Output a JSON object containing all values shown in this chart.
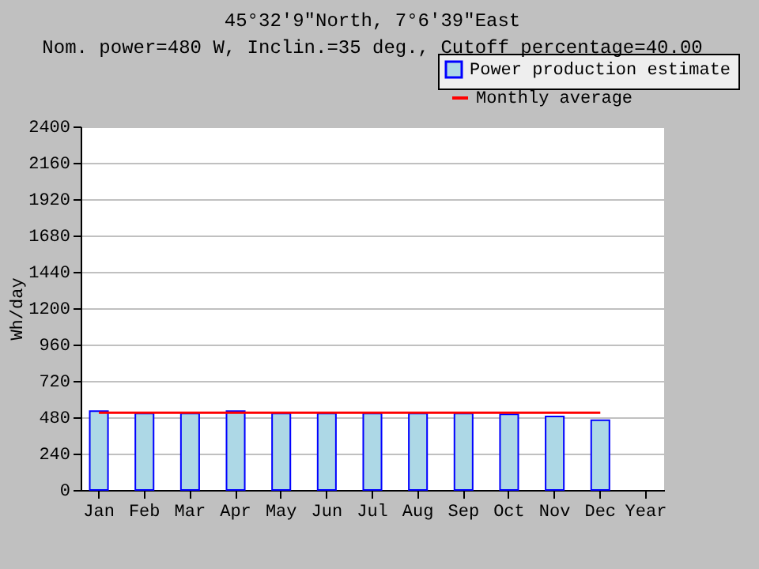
{
  "chart_data": {
    "type": "bar",
    "title": "45°32′9\"North, 7°6′39\"East",
    "subtitle": "Nom. power=480 W, Inclin.=35 deg., Cutoff percentage=40.00",
    "ylabel": "Wh/day",
    "categories": [
      "Jan",
      "Feb",
      "Mar",
      "Apr",
      "May",
      "Jun",
      "Jul",
      "Aug",
      "Sep",
      "Oct",
      "Nov",
      "Dec",
      "Year"
    ],
    "series": [
      {
        "name": "Power production estimate",
        "color": "#add8e6",
        "values": [
          520,
          505,
          505,
          520,
          505,
          505,
          505,
          505,
          505,
          500,
          485,
          460,
          null
        ]
      },
      {
        "name": "Monthly average",
        "type": "line",
        "color": "#ff0000",
        "values": [
          510,
          510,
          510,
          510,
          510,
          510,
          510,
          510,
          510,
          510,
          510,
          510,
          null
        ]
      }
    ],
    "ylim": [
      0,
      2400
    ],
    "yticks": [
      0,
      240,
      480,
      720,
      960,
      1200,
      1440,
      1680,
      1920,
      2160,
      2400
    ],
    "grid": "y",
    "legend": "top right"
  }
}
